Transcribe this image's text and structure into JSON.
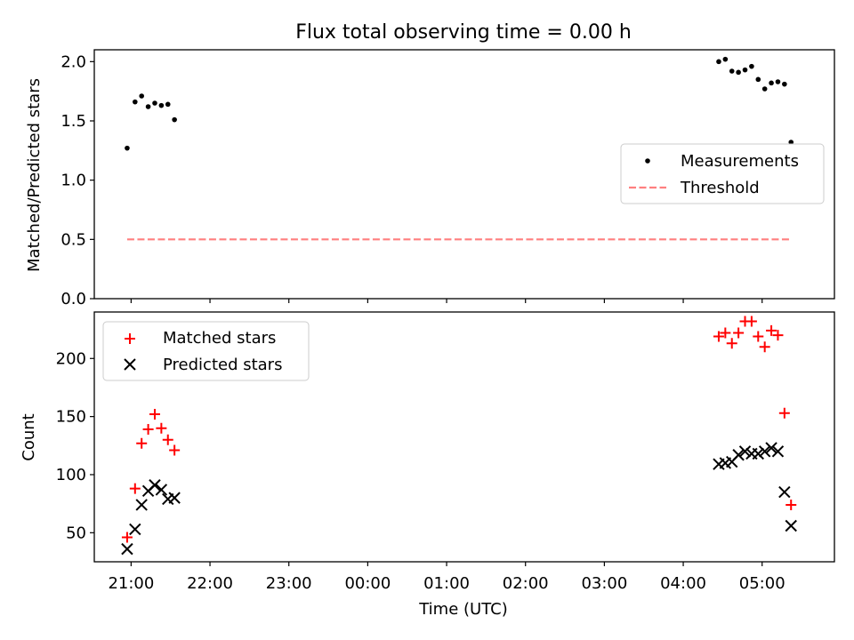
{
  "chart_data": [
    {
      "type": "scatter",
      "title": "Flux total observing time = 0.00 h",
      "xlabel": "",
      "ylabel": "Matched/Predicted stars",
      "xlim": [
        "20:32",
        "05:55"
      ],
      "ylim": [
        0.0,
        2.1
      ],
      "yticks": [
        0.0,
        0.5,
        1.0,
        1.5,
        2.0
      ],
      "ytick_labels": [
        "0.0",
        "0.5",
        "1.0",
        "1.5",
        "2.0"
      ],
      "xticks_visible": true,
      "xtick_labels_visible": false,
      "legend_position": "center-right",
      "grid": false,
      "series": [
        {
          "name": "Measurements",
          "marker": "dot",
          "color": "#000000",
          "points": [
            {
              "x": "20:57",
              "y": 1.27
            },
            {
              "x": "21:03",
              "y": 1.66
            },
            {
              "x": "21:08",
              "y": 1.71
            },
            {
              "x": "21:13",
              "y": 1.62
            },
            {
              "x": "21:18",
              "y": 1.65
            },
            {
              "x": "21:23",
              "y": 1.63
            },
            {
              "x": "21:28",
              "y": 1.64
            },
            {
              "x": "21:33",
              "y": 1.51
            },
            {
              "x": "04:27",
              "y": 2.0
            },
            {
              "x": "04:32",
              "y": 2.02
            },
            {
              "x": "04:37",
              "y": 1.92
            },
            {
              "x": "04:42",
              "y": 1.91
            },
            {
              "x": "04:47",
              "y": 1.93
            },
            {
              "x": "04:52",
              "y": 1.96
            },
            {
              "x": "04:57",
              "y": 1.85
            },
            {
              "x": "05:02",
              "y": 1.77
            },
            {
              "x": "05:07",
              "y": 1.82
            },
            {
              "x": "05:12",
              "y": 1.83
            },
            {
              "x": "05:17",
              "y": 1.81
            },
            {
              "x": "05:22",
              "y": 1.32
            }
          ]
        },
        {
          "name": "Threshold",
          "style": "dashed-line",
          "color": "#ff7f7f",
          "points": [
            {
              "x": "20:57",
              "y": 0.5
            },
            {
              "x": "05:22",
              "y": 0.5
            }
          ]
        }
      ]
    },
    {
      "type": "scatter",
      "title": "",
      "xlabel": "Time (UTC)",
      "ylabel": "Count",
      "xlim": [
        "20:32",
        "05:55"
      ],
      "ylim": [
        25,
        240
      ],
      "yticks": [
        50,
        100,
        150,
        200
      ],
      "ytick_labels": [
        "50",
        "100",
        "150",
        "200"
      ],
      "xticks": [
        "21:00",
        "22:00",
        "23:00",
        "00:00",
        "01:00",
        "02:00",
        "03:00",
        "04:00",
        "05:00"
      ],
      "legend_position": "top-left",
      "grid": false,
      "series": [
        {
          "name": "Matched stars",
          "marker": "plus",
          "color": "#ff0000",
          "points": [
            {
              "x": "20:57",
              "y": 46
            },
            {
              "x": "21:03",
              "y": 88
            },
            {
              "x": "21:08",
              "y": 127
            },
            {
              "x": "21:13",
              "y": 139
            },
            {
              "x": "21:18",
              "y": 152
            },
            {
              "x": "21:23",
              "y": 140
            },
            {
              "x": "21:28",
              "y": 130
            },
            {
              "x": "21:33",
              "y": 121
            },
            {
              "x": "04:27",
              "y": 219
            },
            {
              "x": "04:32",
              "y": 222
            },
            {
              "x": "04:37",
              "y": 213
            },
            {
              "x": "04:42",
              "y": 222
            },
            {
              "x": "04:47",
              "y": 232
            },
            {
              "x": "04:52",
              "y": 232
            },
            {
              "x": "04:57",
              "y": 219
            },
            {
              "x": "05:02",
              "y": 210
            },
            {
              "x": "05:07",
              "y": 224
            },
            {
              "x": "05:12",
              "y": 220
            },
            {
              "x": "05:17",
              "y": 153
            },
            {
              "x": "05:22",
              "y": 74
            }
          ]
        },
        {
          "name": "Predicted stars",
          "marker": "x",
          "color": "#000000",
          "points": [
            {
              "x": "20:57",
              "y": 36
            },
            {
              "x": "21:03",
              "y": 53
            },
            {
              "x": "21:08",
              "y": 74
            },
            {
              "x": "21:13",
              "y": 86
            },
            {
              "x": "21:18",
              "y": 91
            },
            {
              "x": "21:23",
              "y": 87
            },
            {
              "x": "21:28",
              "y": 79
            },
            {
              "x": "21:33",
              "y": 80
            },
            {
              "x": "04:27",
              "y": 109
            },
            {
              "x": "04:32",
              "y": 110
            },
            {
              "x": "04:37",
              "y": 111
            },
            {
              "x": "04:42",
              "y": 117
            },
            {
              "x": "04:47",
              "y": 120
            },
            {
              "x": "04:52",
              "y": 118
            },
            {
              "x": "04:57",
              "y": 118
            },
            {
              "x": "05:02",
              "y": 120
            },
            {
              "x": "05:07",
              "y": 123
            },
            {
              "x": "05:12",
              "y": 120
            },
            {
              "x": "05:17",
              "y": 85
            },
            {
              "x": "05:22",
              "y": 56
            }
          ]
        }
      ]
    }
  ]
}
